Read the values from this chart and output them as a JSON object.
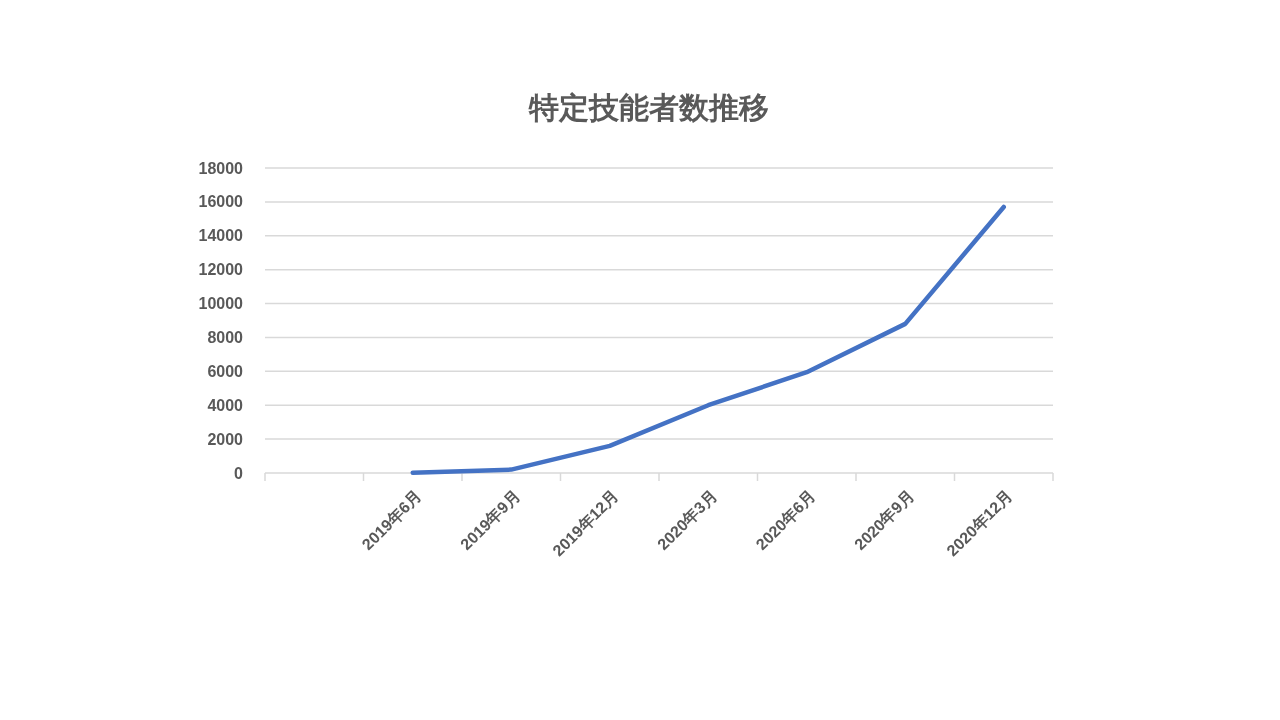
{
  "chart_data": {
    "type": "line",
    "title": "特定技能者数推移",
    "categories": [
      null,
      "2019年6月",
      "2019年9月",
      "2019年12月",
      "2020年3月",
      "2020年6月",
      "2020年9月",
      "2020年12月"
    ],
    "series": [
      {
        "color": "#4472c4",
        "values": [
          null,
          20,
          200,
          1600,
          4000,
          5950,
          8800,
          15700
        ]
      }
    ],
    "ylim": [
      0,
      18000
    ],
    "yticks": [
      0,
      2000,
      4000,
      6000,
      8000,
      10000,
      12000,
      14000,
      16000,
      18000
    ],
    "grid": "y",
    "marker": "none",
    "line_style": "solid"
  }
}
